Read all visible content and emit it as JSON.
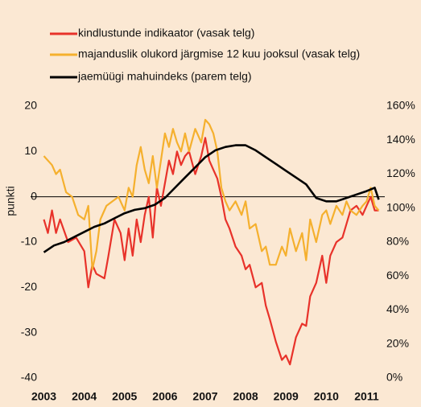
{
  "chart_data": {
    "type": "line",
    "y_label": "punkti",
    "xlim": [
      2002.67,
      2011.45
    ],
    "xticks": [
      2003,
      2004,
      2005,
      2006,
      2007,
      2008,
      2009,
      2010,
      2011
    ],
    "ylim": [
      -40,
      20
    ],
    "yticks": [
      -40,
      -30,
      -20,
      -10,
      0,
      10,
      20
    ],
    "y2lim": [
      0,
      160
    ],
    "y2ticks": [
      {
        "value": 0,
        "label": "0%"
      },
      {
        "value": 20,
        "label": "20%"
      },
      {
        "value": 40,
        "label": "40%"
      },
      {
        "value": 60,
        "label": "60%"
      },
      {
        "value": 80,
        "label": "80%"
      },
      {
        "value": 100,
        "label": "100%"
      },
      {
        "value": 120,
        "label": "120%"
      },
      {
        "value": 140,
        "label": "140%"
      },
      {
        "value": 160,
        "label": "160%"
      }
    ],
    "series": [
      {
        "name": "kindlustunde indikaator (vasak telg)",
        "color": "#e8322a",
        "x": [
          2003.0,
          2003.1,
          2003.2,
          2003.3,
          2003.4,
          2003.6,
          2003.8,
          2004.0,
          2004.1,
          2004.2,
          2004.3,
          2004.5,
          2004.6,
          2004.75,
          2004.9,
          2005.0,
          2005.1,
          2005.2,
          2005.3,
          2005.4,
          2005.5,
          2005.6,
          2005.7,
          2005.8,
          2005.9,
          2006.0,
          2006.1,
          2006.2,
          2006.3,
          2006.4,
          2006.5,
          2006.6,
          2006.75,
          2006.9,
          2007.0,
          2007.1,
          2007.2,
          2007.3,
          2007.4,
          2007.5,
          2007.6,
          2007.75,
          2007.9,
          2008.0,
          2008.1,
          2008.25,
          2008.4,
          2008.5,
          2008.6,
          2008.75,
          2008.9,
          2009.0,
          2009.1,
          2009.25,
          2009.4,
          2009.5,
          2009.6,
          2009.75,
          2009.9,
          2010.0,
          2010.1,
          2010.25,
          2010.4,
          2010.5,
          2010.6,
          2010.75,
          2010.9,
          2011.0,
          2011.1,
          2011.2,
          2011.3
        ],
        "values": [
          -5,
          -8,
          -3,
          -8,
          -5,
          -10,
          -9,
          -12,
          -20,
          -15,
          -17,
          -18,
          -13,
          -5,
          -8,
          -14,
          -7,
          -13,
          -5,
          -10,
          -4,
          0,
          -9,
          2,
          -2,
          3,
          8,
          5,
          10,
          7,
          9,
          10,
          5,
          9,
          13,
          8,
          6,
          4,
          0,
          -5,
          -7,
          -11,
          -13,
          -16,
          -15,
          -20,
          -19,
          -24,
          -27,
          -32,
          -36,
          -35,
          -37,
          -31,
          -28,
          -28.5,
          -22,
          -19,
          -13,
          -19,
          -13,
          -10,
          -9,
          -6,
          -3,
          -2,
          -4,
          -2,
          0,
          -3,
          -3
        ]
      },
      {
        "name": "majanduslik olukord järgmise 12 kuu jooksul (vasak telg)",
        "color": "#f5b02e",
        "x": [
          2003.0,
          2003.2,
          2003.3,
          2003.4,
          2003.55,
          2003.7,
          2003.85,
          2004.0,
          2004.1,
          2004.2,
          2004.3,
          2004.4,
          2004.55,
          2004.7,
          2004.85,
          2005.0,
          2005.1,
          2005.2,
          2005.3,
          2005.4,
          2005.5,
          2005.6,
          2005.7,
          2005.8,
          2005.9,
          2006.0,
          2006.1,
          2006.2,
          2006.3,
          2006.4,
          2006.5,
          2006.6,
          2006.75,
          2006.9,
          2007.0,
          2007.1,
          2007.2,
          2007.3,
          2007.4,
          2007.5,
          2007.6,
          2007.75,
          2007.9,
          2008.0,
          2008.1,
          2008.25,
          2008.4,
          2008.5,
          2008.6,
          2008.75,
          2008.9,
          2009.0,
          2009.1,
          2009.25,
          2009.4,
          2009.5,
          2009.6,
          2009.75,
          2009.9,
          2010.0,
          2010.1,
          2010.25,
          2010.4,
          2010.5,
          2010.6,
          2010.75,
          2010.9,
          2011.0,
          2011.1,
          2011.2,
          2011.3
        ],
        "values": [
          9,
          7,
          5,
          6,
          1,
          0,
          -4,
          -5,
          -2,
          -16,
          -12,
          -5,
          -2,
          -1,
          0,
          -3,
          2,
          0,
          7,
          11,
          6,
          3,
          9,
          2,
          8,
          14,
          11,
          15,
          12,
          10,
          14,
          10,
          15,
          12,
          17,
          16,
          14,
          10,
          2,
          -1,
          -3,
          -1,
          -4,
          -1,
          -7,
          -6,
          -12,
          -11,
          -15,
          -15,
          -11,
          -13,
          -7,
          -12,
          -8,
          -14,
          -5,
          -10,
          -4,
          -3,
          -6,
          -2,
          -4,
          -1,
          -3,
          -4,
          -2,
          -1,
          2,
          -2,
          -3
        ]
      },
      {
        "name": "jaemüügi mahuindeks (parem telg)",
        "color": "#000000",
        "axis": "y2",
        "x": [
          2003.0,
          2003.25,
          2003.5,
          2003.75,
          2004.0,
          2004.25,
          2004.5,
          2004.75,
          2005.0,
          2005.25,
          2005.5,
          2005.75,
          2006.0,
          2006.25,
          2006.5,
          2006.75,
          2007.0,
          2007.25,
          2007.5,
          2007.75,
          2008.0,
          2008.25,
          2008.5,
          2008.75,
          2009.0,
          2009.25,
          2009.5,
          2009.75,
          2010.0,
          2010.25,
          2010.5,
          2010.75,
          2011.0,
          2011.2,
          2011.3
        ],
        "values": [
          74,
          78,
          80,
          83,
          86,
          89,
          91,
          94,
          97,
          99,
          100,
          102,
          106,
          112,
          118,
          124,
          130,
          134,
          136,
          137,
          137,
          134,
          130,
          126,
          122,
          118,
          114,
          106,
          104,
          104,
          106,
          108,
          110,
          112,
          105
        ]
      }
    ]
  }
}
